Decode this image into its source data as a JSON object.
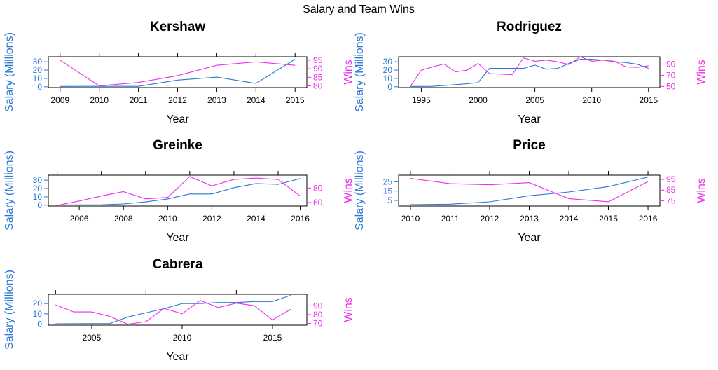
{
  "suptitle": "Salary and Team Wins",
  "colors": {
    "salary": "#2a78d6",
    "wins": "#ee2cec",
    "axis": "#000000"
  },
  "chart_data": [
    {
      "type": "line",
      "title": "Kershaw",
      "xlabel": "Year",
      "ylabel_left": "Salary (Millions)",
      "ylabel_right": "Wins",
      "xlim": [
        2008.7,
        2015.3
      ],
      "xticks": [
        2009,
        2010,
        2011,
        2012,
        2013,
        2014,
        2015
      ],
      "y_left": {
        "lim": [
          -1,
          36
        ],
        "ticks": [
          0,
          10,
          20,
          30
        ]
      },
      "y_right": {
        "lim": [
          79,
          97
        ],
        "ticks": [
          80,
          85,
          90,
          95
        ]
      },
      "top_ticks": [
        2009,
        2010,
        2011,
        2012,
        2013,
        2014,
        2015
      ],
      "series": [
        {
          "name": "Salary (Millions)",
          "axis": "left",
          "x": [
            2009,
            2010,
            2011,
            2012,
            2013,
            2014,
            2015
          ],
          "y": [
            0.4,
            0.5,
            0.5,
            8,
            11.5,
            4,
            33
          ]
        },
        {
          "name": "Wins",
          "axis": "right",
          "x": [
            2009,
            2010,
            2011,
            2012,
            2013,
            2014,
            2015
          ],
          "y": [
            95,
            80,
            82,
            86,
            92,
            94,
            92
          ]
        }
      ]
    },
    {
      "type": "line",
      "title": "Rodriguez",
      "xlabel": "Year",
      "ylabel_left": "Salary (Millions)",
      "ylabel_right": "Wins",
      "xlim": [
        1993,
        2016
      ],
      "xticks": [
        1995,
        2000,
        2005,
        2010,
        2015
      ],
      "y_left": {
        "lim": [
          -1,
          36
        ],
        "ticks": [
          0,
          10,
          20,
          30
        ]
      },
      "y_right": {
        "lim": [
          48,
          103
        ],
        "ticks": [
          50,
          70,
          90
        ]
      },
      "top_ticks": [],
      "series": [
        {
          "name": "Salary (Millions)",
          "axis": "left",
          "x": [
            1994,
            1995,
            1996,
            1997,
            1998,
            1999,
            2000,
            2001,
            2002,
            2003,
            2004,
            2005,
            2006,
            2007,
            2008,
            2009,
            2010,
            2011,
            2012,
            2013,
            2014,
            2015
          ],
          "y": [
            0.4,
            0.4,
            0.5,
            1.5,
            2.5,
            3.5,
            5,
            22,
            22,
            22,
            22,
            26,
            21,
            22,
            28,
            33,
            33,
            32,
            30,
            29,
            27,
            22
          ]
        },
        {
          "name": "Wins",
          "axis": "right",
          "x": [
            1994,
            1995,
            1996,
            1997,
            1998,
            1999,
            2000,
            2001,
            2002,
            2003,
            2004,
            2005,
            2006,
            2007,
            2008,
            2009,
            2010,
            2011,
            2012,
            2013,
            2014,
            2015
          ],
          "y": [
            49,
            79,
            85,
            90,
            76,
            79,
            91,
            73,
            72,
            71,
            101,
            95,
            97,
            94,
            89,
            103,
            95,
            97,
            95,
            85,
            84,
            87
          ]
        }
      ]
    },
    {
      "type": "line",
      "title": "Greinke",
      "xlabel": "Year",
      "ylabel_left": "Salary (Millions)",
      "ylabel_right": "Wins",
      "xlim": [
        2004.6,
        2016.3
      ],
      "xticks": [
        2006,
        2008,
        2010,
        2012,
        2014,
        2016
      ],
      "y_left": {
        "lim": [
          -1,
          36
        ],
        "ticks": [
          0,
          10,
          20,
          30
        ]
      },
      "y_right": {
        "lim": [
          55,
          98
        ],
        "ticks": [
          60,
          80
        ]
      },
      "top_ticks": [
        2005,
        2007,
        2009,
        2011,
        2013,
        2015
      ],
      "series": [
        {
          "name": "Salary (Millions)",
          "axis": "left",
          "x": [
            2005,
            2006,
            2007,
            2008,
            2009,
            2010,
            2011,
            2012,
            2013,
            2014,
            2015,
            2016
          ],
          "y": [
            0.3,
            0.4,
            0.5,
            1.5,
            4,
            7.5,
            13.5,
            13.5,
            21,
            26,
            25,
            32
          ]
        },
        {
          "name": "Wins",
          "axis": "right",
          "x": [
            2005,
            2006,
            2007,
            2008,
            2009,
            2010,
            2011,
            2012,
            2013,
            2014,
            2015,
            2016
          ],
          "y": [
            56,
            62,
            69,
            75,
            65,
            67,
            96,
            83,
            92,
            94,
            92,
            69
          ]
        }
      ]
    },
    {
      "type": "line",
      "title": "Price",
      "xlabel": "Year",
      "ylabel_left": "Salary (Millions)",
      "ylabel_right": "Wins",
      "xlim": [
        2009.7,
        2016.3
      ],
      "xticks": [
        2010,
        2011,
        2012,
        2013,
        2014,
        2015,
        2016
      ],
      "y_left": {
        "lim": [
          -1,
          32
        ],
        "ticks": [
          5,
          15,
          25
        ]
      },
      "y_right": {
        "lim": [
          70,
          99
        ],
        "ticks": [
          75,
          85,
          95
        ]
      },
      "top_ticks": [
        2010,
        2011,
        2012,
        2013,
        2014,
        2015,
        2016
      ],
      "series": [
        {
          "name": "Salary (Millions)",
          "axis": "left",
          "x": [
            2010,
            2011,
            2012,
            2013,
            2014,
            2015,
            2016
          ],
          "y": [
            0.5,
            1,
            3.5,
            10,
            14,
            19.8,
            30
          ]
        },
        {
          "name": "Wins",
          "axis": "right",
          "x": [
            2010,
            2011,
            2012,
            2013,
            2014,
            2015,
            2016
          ],
          "y": [
            96,
            91,
            90,
            92,
            77,
            74,
            93
          ]
        }
      ]
    },
    {
      "type": "line",
      "title": "Cabrera",
      "xlabel": "Year",
      "ylabel_left": "Salary (Millions)",
      "ylabel_right": "Wins",
      "xlim": [
        2002.6,
        2016.9
      ],
      "xticks": [
        2005,
        2010,
        2015
      ],
      "y_left": {
        "lim": [
          -1,
          29
        ],
        "ticks": [
          0,
          10,
          20
        ]
      },
      "y_right": {
        "lim": [
          68,
          103
        ],
        "ticks": [
          70,
          80,
          90
        ]
      },
      "top_ticks": [
        2003,
        2008,
        2013
      ],
      "series": [
        {
          "name": "Salary (Millions)",
          "axis": "left",
          "x": [
            2003,
            2004,
            2005,
            2006,
            2007,
            2008,
            2009,
            2010,
            2011,
            2012,
            2013,
            2014,
            2015,
            2016
          ],
          "y": [
            0.3,
            0.4,
            0.5,
            0.6,
            7,
            11,
            15,
            20,
            20,
            21,
            21,
            22,
            22,
            28
          ]
        },
        {
          "name": "Wins",
          "axis": "right",
          "x": [
            2003,
            2004,
            2005,
            2006,
            2007,
            2008,
            2009,
            2010,
            2011,
            2012,
            2013,
            2014,
            2015,
            2016
          ],
          "y": [
            91,
            83,
            83,
            78,
            69,
            72,
            87,
            81,
            96,
            88,
            93,
            90,
            74,
            86
          ]
        }
      ]
    }
  ]
}
